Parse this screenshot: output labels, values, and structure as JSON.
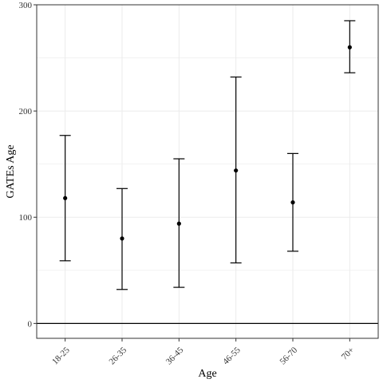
{
  "chart_data": {
    "type": "errorbar",
    "title": "",
    "xlabel": "Age",
    "ylabel": "GATEs Age",
    "categories": [
      "18-25",
      "26-35",
      "36-45",
      "46-55",
      "56-70",
      "70+"
    ],
    "points": [
      {
        "category": "18-25",
        "estimate": 118,
        "lower": 59,
        "upper": 177
      },
      {
        "category": "26-35",
        "estimate": 80,
        "lower": 32,
        "upper": 127
      },
      {
        "category": "36-45",
        "estimate": 94,
        "lower": 34,
        "upper": 155
      },
      {
        "category": "46-55",
        "estimate": 144,
        "lower": 57,
        "upper": 232
      },
      {
        "category": "56-70",
        "estimate": 114,
        "lower": 68,
        "upper": 160
      },
      {
        "category": "70+",
        "estimate": 260,
        "lower": 236,
        "upper": 285
      }
    ],
    "ylim": [
      -14,
      300
    ],
    "yticks": [
      0,
      100,
      200,
      300
    ],
    "reference_line": 0,
    "grid": true,
    "legend": "none",
    "colors": {
      "marks": "#000000",
      "grid": "#ebebeb",
      "border": "#333333"
    }
  }
}
